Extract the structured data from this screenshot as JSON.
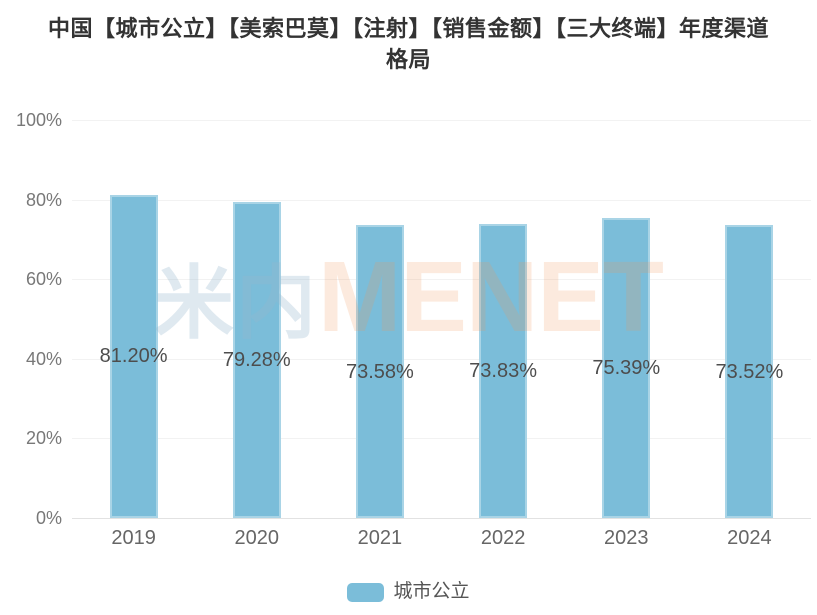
{
  "title": {
    "full": "中国【城市公立】【美索巴莫】【注射】【销售金额】【三大终端】年度渠道格局",
    "line1": "中国【城市公立】【美索巴莫】【注射】【销售金额】【三大终端】年度渠道",
    "line2": "格局",
    "color": "#333333"
  },
  "watermark": {
    "cjk": "米内",
    "latin": "MENET"
  },
  "legend": {
    "items": [
      {
        "label": "城市公立",
        "color": "#7bbdd9"
      }
    ]
  },
  "colors": {
    "bar": "#7bbdd9",
    "gridline": "#f2f2f2",
    "axis_line": "#e2e2e2",
    "bar_label": "#4d4d4d",
    "ytick": "#787878",
    "xtick": "#666666",
    "title": "#333333"
  },
  "chart_data": {
    "type": "bar",
    "title": "中国【城市公立】【美索巴莫】【注射】【销售金额】【三大终端】年度渠道格局",
    "categories": [
      "2019",
      "2020",
      "2021",
      "2022",
      "2023",
      "2024"
    ],
    "series": [
      {
        "name": "城市公立",
        "values": [
          81.2,
          79.28,
          73.58,
          73.83,
          75.39,
          73.52
        ],
        "labels": [
          "81.20%",
          "79.28%",
          "73.58%",
          "73.83%",
          "75.39%",
          "73.52%"
        ],
        "color": "#7bbdd9"
      }
    ],
    "xlabel": "",
    "ylabel": "",
    "ylim": [
      0,
      100
    ],
    "ytick_values": [
      0,
      20,
      40,
      60,
      80,
      100
    ],
    "ytick_labels": [
      "0%",
      "20%",
      "40%",
      "60%",
      "80%",
      "100%"
    ],
    "grid": true,
    "legend_position": "bottom",
    "value_label_position": "bar-middle"
  }
}
